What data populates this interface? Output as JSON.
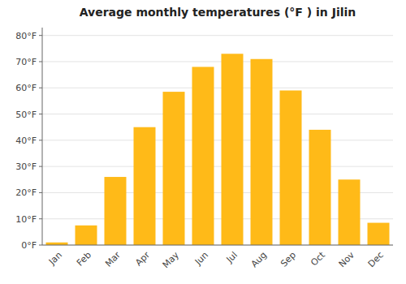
{
  "chart_data": {
    "type": "bar",
    "title": "Average monthly temperatures (°F ) in Jilin",
    "categories": [
      "Jan",
      "Feb",
      "Mar",
      "Apr",
      "May",
      "Jun",
      "Jul",
      "Aug",
      "Sep",
      "Oct",
      "Nov",
      "Dec"
    ],
    "values": [
      1,
      7.5,
      26,
      45,
      58.5,
      68,
      73,
      71,
      59,
      44,
      25,
      8.5
    ],
    "color": "#FFBA18",
    "ylim": [
      0,
      83
    ],
    "yticks": [
      {
        "value": 0,
        "label": "0°F"
      },
      {
        "value": 10,
        "label": "10°F"
      },
      {
        "value": 20,
        "label": "20°F"
      },
      {
        "value": 30,
        "label": "30°F"
      },
      {
        "value": 40,
        "label": "40°F"
      },
      {
        "value": 50,
        "label": "50°F"
      },
      {
        "value": 60,
        "label": "60°F"
      },
      {
        "value": 70,
        "label": "70°F"
      },
      {
        "value": 80,
        "label": "80°F"
      }
    ],
    "grid": true
  }
}
